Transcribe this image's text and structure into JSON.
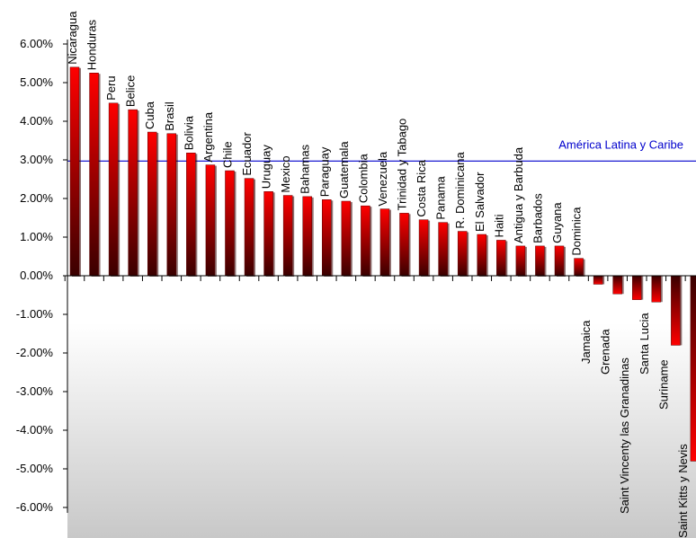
{
  "chart_data": {
    "type": "bar",
    "title": "",
    "xlabel": "",
    "ylabel": "",
    "ylim": [
      -0.06,
      0.06
    ],
    "ytick_values": [
      -0.06,
      -0.05,
      -0.04,
      -0.03,
      -0.02,
      -0.01,
      0,
      0.01,
      0.02,
      0.03,
      0.04,
      0.05,
      0.06
    ],
    "ytick_labels": [
      "-6.00%",
      "-5.00%",
      "-4.00%",
      "-3.00%",
      "-2.00%",
      "-1.00%",
      "0.00%",
      "1.00%",
      "2.00%",
      "3.00%",
      "4.00%",
      "5.00%",
      "6.00%"
    ],
    "categories": [
      "Nicaragua",
      "Honduras",
      "Peru",
      "Belice",
      "Cuba",
      "Brasil",
      "Bolivia",
      "Argentina",
      "Chile",
      "Ecuador",
      "Uruguay",
      "Mexico",
      "Bahamas",
      "Paraguay",
      "Guatemala",
      "Colombia",
      "Venezuela",
      "Trinidad y Tabago",
      "Costa Rica",
      "Panama",
      "R. Dominicana",
      "El Salvador",
      "Haiti",
      "Antigua y Barbuda",
      "Barbados",
      "Guyana",
      "Dominica",
      "Jamaica",
      "Grenada",
      "Saint Vincenty las Granadinas",
      "Santa Lucia",
      "Suriname",
      "Saint Kitts y Nevis"
    ],
    "values": [
      0.054,
      0.0525,
      0.0447,
      0.043,
      0.0372,
      0.0368,
      0.0318,
      0.0287,
      0.0272,
      0.0252,
      0.0218,
      0.0208,
      0.0205,
      0.0197,
      0.0193,
      0.0181,
      0.0173,
      0.0162,
      0.0145,
      0.0138,
      0.0115,
      0.0107,
      0.0092,
      0.0077,
      0.0077,
      0.0077,
      0.0045,
      -0.0022,
      -0.0047,
      -0.0062,
      -0.0068,
      -0.018,
      -0.048
    ],
    "reference_line": {
      "label": "América Latina y Caribe",
      "value": 0.0297,
      "color": "#0000cc"
    },
    "bar_color": "#e60000",
    "bar_shadow_color": "#330000",
    "background_top": "#ffffff",
    "background_bottom": "#c8c8c8",
    "grid": false,
    "legend": "none"
  }
}
